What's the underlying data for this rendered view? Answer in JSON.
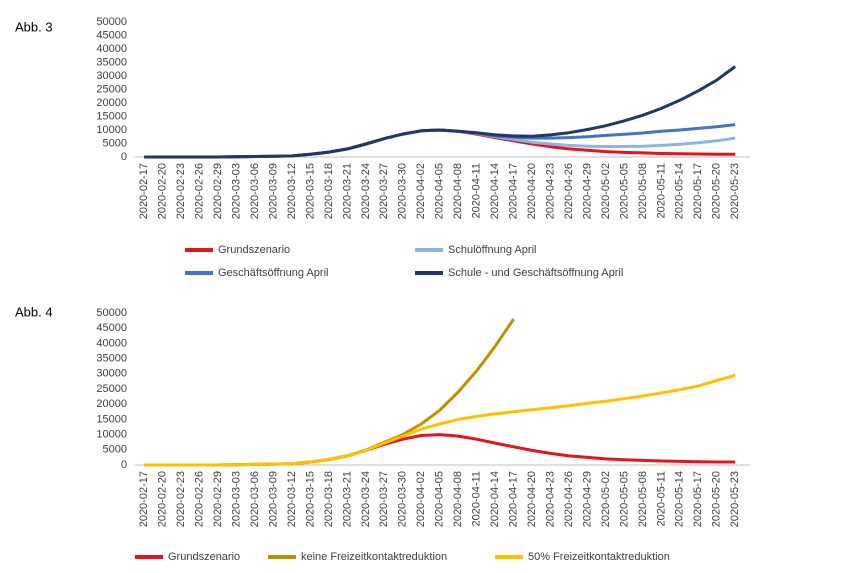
{
  "chart_data": [
    {
      "type": "line",
      "label": "Abb. 3",
      "categories": [
        "2020-02-17",
        "2020-02-20",
        "2020-02-23",
        "2020-02-26",
        "2020-02-29",
        "2020-03-03",
        "2020-03-06",
        "2020-03-09",
        "2020-03-12",
        "2020-03-15",
        "2020-03-18",
        "2020-03-21",
        "2020-03-24",
        "2020-03-27",
        "2020-03-30",
        "2020-04-02",
        "2020-04-05",
        "2020-04-08",
        "2020-04-11",
        "2020-04-14",
        "2020-04-17",
        "2020-04-20",
        "2020-04-23",
        "2020-04-26",
        "2020-04-29",
        "2020-05-02",
        "2020-05-05",
        "2020-05-08",
        "2020-05-11",
        "2020-05-14",
        "2020-05-17",
        "2020-05-20",
        "2020-05-23"
      ],
      "ylim": [
        0,
        50000
      ],
      "yticks": [
        0,
        5000,
        10000,
        15000,
        20000,
        25000,
        30000,
        35000,
        40000,
        45000,
        50000
      ],
      "series": [
        {
          "name": "Grundszenario",
          "color": "#e3141b",
          "values": [
            0,
            0,
            0,
            0,
            0,
            100,
            200,
            300,
            400,
            1000,
            1800,
            3000,
            4800,
            6800,
            8500,
            9700,
            10000,
            9500,
            8500,
            7200,
            6000,
            4800,
            3800,
            3000,
            2500,
            2000,
            1700,
            1500,
            1300,
            1200,
            1100,
            1000,
            1000
          ]
        },
        {
          "name": "Schulöffnung April",
          "color": "#8eb4e3",
          "values": [
            0,
            0,
            0,
            0,
            0,
            100,
            200,
            300,
            400,
            1000,
            1800,
            3000,
            4800,
            6800,
            8500,
            9700,
            10000,
            9500,
            8700,
            7500,
            6500,
            5500,
            4800,
            4300,
            4000,
            3900,
            3900,
            4000,
            4300,
            4700,
            5300,
            6000,
            7000
          ]
        },
        {
          "name": "Geschäftsöffnung April",
          "color": "#4472c4",
          "values": [
            0,
            0,
            0,
            0,
            0,
            100,
            200,
            300,
            400,
            1000,
            1800,
            3000,
            4800,
            6800,
            8500,
            9700,
            10000,
            9500,
            8800,
            7800,
            7300,
            7000,
            7000,
            7200,
            7500,
            8000,
            8400,
            8900,
            9500,
            10000,
            10600,
            11200,
            12000
          ]
        },
        {
          "name": "Schule - und Geschäftsöffnung April",
          "color": "#1f3864",
          "values": [
            0,
            0,
            0,
            0,
            0,
            100,
            200,
            300,
            400,
            1000,
            1800,
            3000,
            4800,
            6800,
            8500,
            9700,
            10000,
            9500,
            9000,
            8200,
            7800,
            7700,
            8200,
            9000,
            10200,
            11600,
            13400,
            15500,
            18000,
            21000,
            24500,
            28500,
            33500
          ]
        }
      ]
    },
    {
      "type": "line",
      "label": "Abb. 4",
      "categories": [
        "2020-02-17",
        "2020-02-20",
        "2020-02-23",
        "2020-02-26",
        "2020-02-29",
        "2020-03-03",
        "2020-03-06",
        "2020-03-09",
        "2020-03-12",
        "2020-03-15",
        "2020-03-18",
        "2020-03-21",
        "2020-03-24",
        "2020-03-27",
        "2020-03-30",
        "2020-04-02",
        "2020-04-05",
        "2020-04-08",
        "2020-04-11",
        "2020-04-14",
        "2020-04-17",
        "2020-04-20",
        "2020-04-23",
        "2020-04-26",
        "2020-04-29",
        "2020-05-02",
        "2020-05-05",
        "2020-05-08",
        "2020-05-11",
        "2020-05-14",
        "2020-05-17",
        "2020-05-20",
        "2020-05-23"
      ],
      "ylim": [
        0,
        50000
      ],
      "yticks": [
        0,
        5000,
        10000,
        15000,
        20000,
        25000,
        30000,
        35000,
        40000,
        45000,
        50000
      ],
      "series": [
        {
          "name": "Grundszenario",
          "color": "#e3141b",
          "values": [
            0,
            0,
            0,
            0,
            0,
            100,
            200,
            300,
            400,
            1000,
            1800,
            3000,
            4800,
            6800,
            8500,
            9700,
            10000,
            9500,
            8500,
            7200,
            6000,
            4800,
            3800,
            3000,
            2500,
            2000,
            1700,
            1500,
            1300,
            1200,
            1100,
            1000,
            1000
          ]
        },
        {
          "name": "keine Freizeitkontaktreduktion",
          "color": "#bf9000",
          "values": [
            0,
            0,
            0,
            0,
            0,
            100,
            200,
            300,
            400,
            1000,
            1800,
            3000,
            4900,
            7500,
            10000,
            13500,
            18000,
            24000,
            31000,
            39000,
            48000,
            null,
            null,
            null,
            null,
            null,
            null,
            null,
            null,
            null,
            null,
            null,
            null
          ]
        },
        {
          "name": "50% Freizeitkontaktreduktion",
          "color": "#ffc000",
          "values": [
            0,
            0,
            0,
            0,
            0,
            100,
            200,
            300,
            400,
            1000,
            1800,
            3000,
            4800,
            7200,
            9500,
            11800,
            13500,
            15000,
            16000,
            16800,
            17500,
            18200,
            18800,
            19500,
            20300,
            21000,
            21800,
            22700,
            23700,
            24800,
            26000,
            27800,
            29500
          ]
        }
      ]
    }
  ]
}
